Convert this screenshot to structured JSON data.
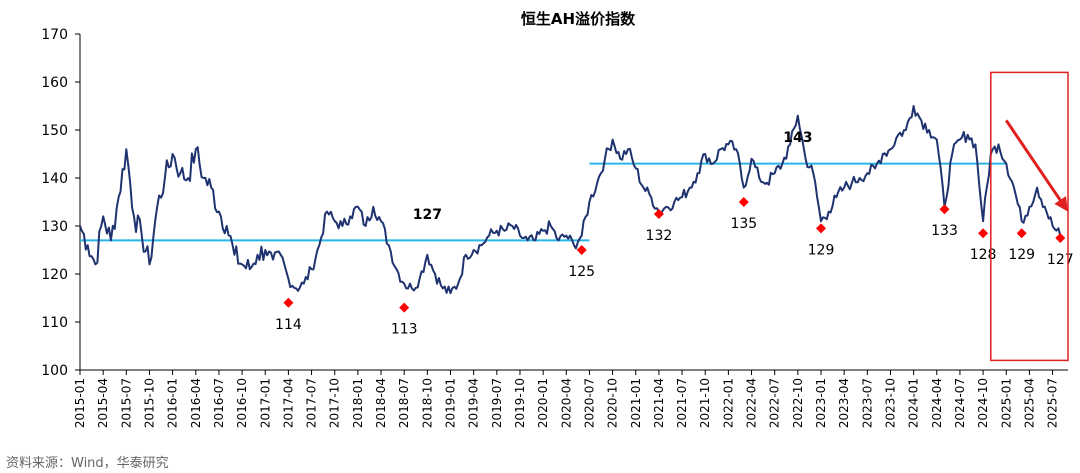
{
  "chart_data": {
    "type": "line",
    "title": "恒生AH溢价指数",
    "ylim": [
      100,
      170
    ],
    "yticks": [
      100,
      110,
      120,
      130,
      140,
      150,
      160,
      170
    ],
    "x_range": [
      "2015-01",
      "2025-09"
    ],
    "xticks": [
      "2015-01",
      "2015-04",
      "2015-07",
      "2015-10",
      "2016-01",
      "2016-04",
      "2016-07",
      "2016-10",
      "2017-01",
      "2017-04",
      "2017-07",
      "2017-10",
      "2018-01",
      "2018-04",
      "2018-07",
      "2018-10",
      "2019-01",
      "2019-04",
      "2019-07",
      "2019-10",
      "2020-01",
      "2020-04",
      "2020-07",
      "2020-10",
      "2021-01",
      "2021-04",
      "2021-07",
      "2021-10",
      "2022-01",
      "2022-04",
      "2022-07",
      "2022-10",
      "2023-01",
      "2023-04",
      "2023-07",
      "2023-10",
      "2024-01",
      "2024-04",
      "2024-07",
      "2024-10",
      "2025-01",
      "2025-04",
      "2025-07"
    ],
    "grid": false,
    "series": [
      {
        "color": "#1f3370",
        "points": [
          [
            "2015-01",
            130
          ],
          [
            "2015-02",
            126
          ],
          [
            "2015-03",
            122
          ],
          [
            "2015-04",
            132
          ],
          [
            "2015-05",
            127
          ],
          [
            "2015-06",
            136
          ],
          [
            "2015-07",
            146
          ],
          [
            "2015-08",
            132
          ],
          [
            "2015-09",
            128
          ],
          [
            "2015-10",
            122
          ],
          [
            "2015-11",
            134
          ],
          [
            "2015-12",
            140
          ],
          [
            "2016-01",
            145
          ],
          [
            "2016-02",
            141
          ],
          [
            "2016-03",
            140
          ],
          [
            "2016-04",
            146
          ],
          [
            "2016-05",
            140
          ],
          [
            "2016-06",
            138
          ],
          [
            "2016-07",
            133
          ],
          [
            "2016-08",
            130
          ],
          [
            "2016-09",
            124
          ],
          [
            "2016-10",
            122
          ],
          [
            "2016-11",
            121
          ],
          [
            "2016-12",
            124
          ],
          [
            "2017-01",
            125
          ],
          [
            "2017-02",
            123
          ],
          [
            "2017-03",
            124
          ],
          [
            "2017-04",
            119
          ],
          [
            "2017-05",
            117
          ],
          [
            "2017-06",
            118
          ],
          [
            "2017-07",
            121
          ],
          [
            "2017-08",
            126
          ],
          [
            "2017-09",
            133
          ],
          [
            "2017-10",
            131
          ],
          [
            "2017-11",
            130
          ],
          [
            "2017-12",
            132
          ],
          [
            "2018-01",
            134
          ],
          [
            "2018-02",
            130
          ],
          [
            "2018-03",
            134
          ],
          [
            "2018-04",
            131
          ],
          [
            "2018-05",
            126
          ],
          [
            "2018-06",
            121
          ],
          [
            "2018-07",
            118
          ],
          [
            "2018-08",
            117
          ],
          [
            "2018-09",
            119
          ],
          [
            "2018-10",
            124
          ],
          [
            "2018-11",
            120
          ],
          [
            "2018-12",
            117
          ],
          [
            "2019-01",
            116
          ],
          [
            "2019-02",
            118
          ],
          [
            "2019-03",
            124
          ],
          [
            "2019-04",
            125
          ],
          [
            "2019-05",
            126
          ],
          [
            "2019-06",
            128
          ],
          [
            "2019-07",
            129
          ],
          [
            "2019-08",
            129
          ],
          [
            "2019-09",
            130
          ],
          [
            "2019-10",
            128
          ],
          [
            "2019-11",
            127
          ],
          [
            "2019-12",
            127
          ],
          [
            "2020-01",
            129
          ],
          [
            "2020-02",
            130
          ],
          [
            "2020-03",
            127
          ],
          [
            "2020-04",
            128
          ],
          [
            "2020-05",
            126
          ],
          [
            "2020-06",
            128
          ],
          [
            "2020-07",
            135
          ],
          [
            "2020-08",
            139
          ],
          [
            "2020-09",
            144
          ],
          [
            "2020-10",
            148
          ],
          [
            "2020-11",
            144
          ],
          [
            "2020-12",
            146
          ],
          [
            "2021-01",
            142
          ],
          [
            "2021-02",
            138
          ],
          [
            "2021-03",
            136
          ],
          [
            "2021-04",
            133
          ],
          [
            "2021-05",
            134
          ],
          [
            "2021-06",
            135
          ],
          [
            "2021-07",
            136
          ],
          [
            "2021-08",
            138
          ],
          [
            "2021-09",
            141
          ],
          [
            "2021-10",
            145
          ],
          [
            "2021-11",
            143
          ],
          [
            "2021-12",
            146
          ],
          [
            "2022-01",
            147
          ],
          [
            "2022-02",
            146
          ],
          [
            "2022-03",
            138
          ],
          [
            "2022-04",
            144
          ],
          [
            "2022-05",
            140
          ],
          [
            "2022-06",
            139
          ],
          [
            "2022-07",
            141
          ],
          [
            "2022-08",
            143
          ],
          [
            "2022-09",
            147
          ],
          [
            "2022-10",
            153
          ],
          [
            "2022-11",
            144
          ],
          [
            "2022-12",
            141
          ],
          [
            "2023-01",
            131
          ],
          [
            "2023-02",
            133
          ],
          [
            "2023-03",
            136
          ],
          [
            "2023-04",
            138
          ],
          [
            "2023-05",
            139
          ],
          [
            "2023-06",
            140
          ],
          [
            "2023-07",
            141
          ],
          [
            "2023-08",
            142
          ],
          [
            "2023-09",
            145
          ],
          [
            "2023-10",
            146
          ],
          [
            "2023-11",
            149
          ],
          [
            "2023-12",
            150
          ],
          [
            "2024-01",
            155
          ],
          [
            "2024-02",
            152
          ],
          [
            "2024-03",
            150
          ],
          [
            "2024-04",
            148
          ],
          [
            "2024-05",
            134
          ],
          [
            "2024-06",
            145
          ],
          [
            "2024-07",
            148
          ],
          [
            "2024-08",
            149
          ],
          [
            "2024-09",
            147
          ],
          [
            "2024-10",
            131
          ],
          [
            "2024-11",
            145
          ],
          [
            "2024-12",
            147
          ],
          [
            "2025-01",
            143
          ],
          [
            "2025-02",
            138
          ],
          [
            "2025-03",
            131
          ],
          [
            "2025-04",
            134
          ],
          [
            "2025-05",
            138
          ],
          [
            "2025-06",
            134
          ],
          [
            "2025-07",
            130
          ],
          [
            "2025-08",
            128
          ]
        ]
      }
    ],
    "reference_lines": [
      {
        "from": "2015-01",
        "to": "2020-07",
        "value": 127,
        "color": "#29b6e6"
      },
      {
        "from": "2020-07",
        "to": "2025-01",
        "value": 143,
        "color": "#29b6e6"
      }
    ],
    "mean_labels": [
      {
        "x": "2018-10",
        "y": 131.5,
        "text": "127"
      },
      {
        "x": "2022-10",
        "y": 147.5,
        "text": "143"
      }
    ],
    "lows": [
      {
        "x": "2017-04",
        "y": 114,
        "label": "114"
      },
      {
        "x": "2018-07",
        "y": 113,
        "label": "113"
      },
      {
        "x": "2020-06",
        "y": 125,
        "label": "125"
      },
      {
        "x": "2021-04",
        "y": 132.5,
        "label": "132"
      },
      {
        "x": "2022-03",
        "y": 135,
        "label": "135"
      },
      {
        "x": "2023-01",
        "y": 129.5,
        "label": "129"
      },
      {
        "x": "2024-05",
        "y": 133.5,
        "label": "133"
      },
      {
        "x": "2024-10",
        "y": 128.5,
        "label": "128"
      },
      {
        "x": "2025-03",
        "y": 128.5,
        "label": "129"
      },
      {
        "x": "2025-08",
        "y": 127.5,
        "label": "127"
      }
    ],
    "highlight_box": {
      "x_from": "2024-11",
      "x_to": "2025-09",
      "y_from": 102,
      "y_to": 162,
      "color": "#e02020"
    },
    "arrow": {
      "from": [
        "2025-01",
        152
      ],
      "to": [
        "2025-09",
        133
      ],
      "color": "#e02020"
    },
    "marker_color": "#ff0000"
  },
  "source": "资料来源：Wind，华泰研究"
}
